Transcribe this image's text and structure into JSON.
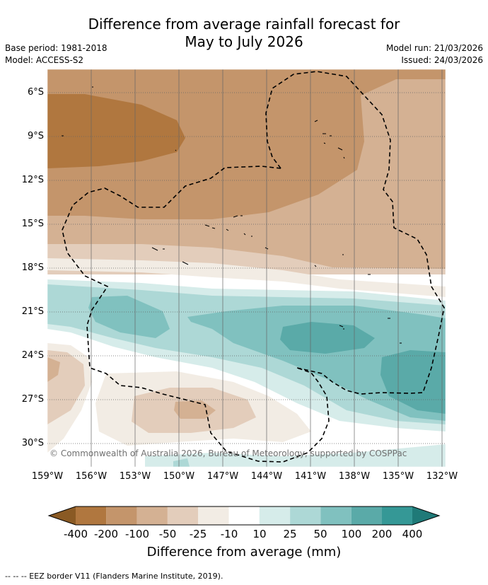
{
  "title_line1": "Difference from average rainfall forecast for",
  "title_line2": "May to July 2026",
  "base_period": "Base period: 1981-2018",
  "model": "Model: ACCESS-S2",
  "model_run": "Model run: 21/03/2026",
  "issued": "Issued: 24/03/2026",
  "lat_labels": [
    "6°S",
    "9°S",
    "12°S",
    "15°S",
    "18°S",
    "21°S",
    "24°S",
    "27°S",
    "30°S"
  ],
  "lon_labels": [
    "159°W",
    "156°W",
    "153°W",
    "150°W",
    "147°W",
    "144°W",
    "141°W",
    "138°W",
    "135°W",
    "132°W"
  ],
  "copyright": "© Commonwealth of Australia 2026, Bureau of Meteorology, supported by COSPPac",
  "colorbar": {
    "ticks": [
      "-400",
      "-200",
      "-100",
      "-50",
      "-25",
      "-10",
      "10",
      "25",
      "50",
      "100",
      "200",
      "400"
    ],
    "colors": {
      "lt_neg400": "#8a5a24",
      "neg400_neg200": "#b0773f",
      "neg200_neg100": "#c4956b",
      "neg100_neg50": "#d4b193",
      "neg50_neg25": "#e3cdbb",
      "neg25_neg10": "#f2ece4",
      "neg10_10": "#ffffff",
      "10_25": "#d6ecea",
      "25_50": "#add8d6",
      "50_100": "#80c1bf",
      "100_200": "#5aaaa8",
      "200_400": "#359896",
      "gt_400": "#1f7a78"
    },
    "label": "Difference from average (mm)"
  },
  "legend": "--  --  -- EEZ border V11 (Flanders Marine Institute, 2019)."
}
